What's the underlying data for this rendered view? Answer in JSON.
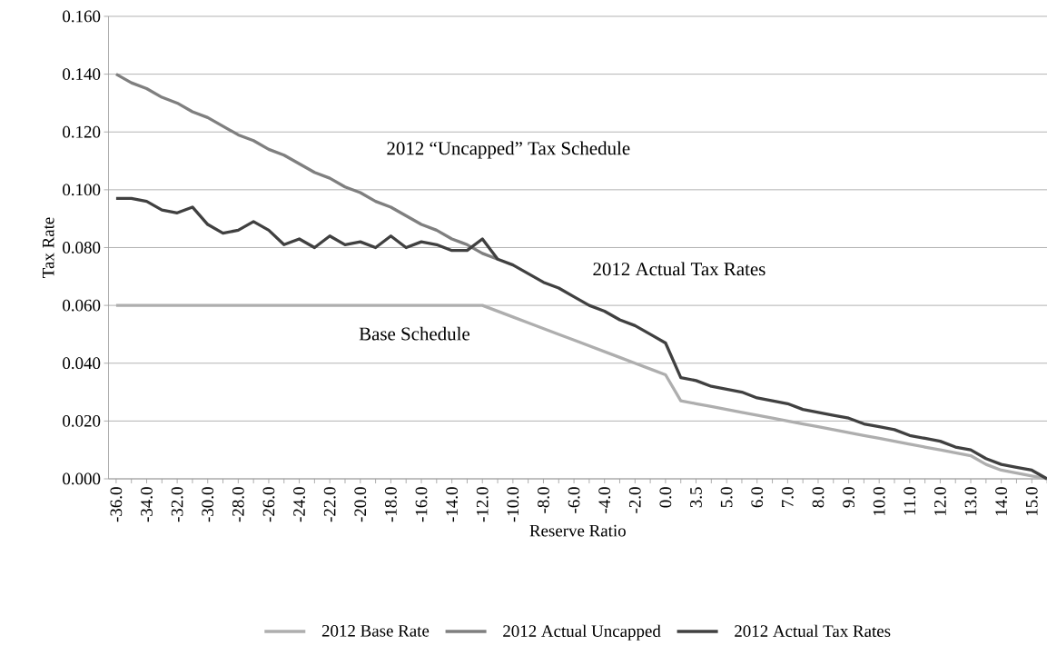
{
  "chart_data": {
    "type": "line",
    "xlabel": "Reserve Ratio",
    "ylabel": "Tax Rate",
    "categories": [
      "-36.0",
      null,
      "-34.0",
      null,
      "-32.0",
      null,
      "-30.0",
      null,
      "-28.0",
      null,
      "-26.0",
      null,
      "-24.0",
      null,
      "-22.0",
      null,
      "-20.0",
      null,
      "-18.0",
      null,
      "-16.0",
      null,
      "-14.0",
      null,
      "-12.0",
      null,
      "-10.0",
      null,
      "-8.0",
      null,
      "-6.0",
      null,
      "-4.0",
      null,
      "-2.0",
      null,
      "0.0",
      null,
      "3.5",
      null,
      "5.0",
      null,
      "6.0",
      null,
      "7.0",
      null,
      "8.0",
      null,
      "9.0",
      null,
      "10.0",
      null,
      "11.0",
      null,
      "12.0",
      null,
      "13.0",
      null,
      "14.0",
      null,
      "15.0",
      null
    ],
    "series": [
      {
        "name": "2012 Base Rate",
        "color": "#aeaeae",
        "values": [
          0.06,
          0.06,
          0.06,
          0.06,
          0.06,
          0.06,
          0.06,
          0.06,
          0.06,
          0.06,
          0.06,
          0.06,
          0.06,
          0.06,
          0.06,
          0.06,
          0.06,
          0.06,
          0.06,
          0.06,
          0.06,
          0.06,
          0.06,
          0.06,
          0.06,
          0.058,
          0.056,
          0.054,
          0.052,
          0.05,
          0.048,
          0.046,
          0.044,
          0.042,
          0.04,
          0.038,
          0.036,
          0.027,
          0.026,
          0.025,
          0.024,
          0.023,
          0.022,
          0.021,
          0.02,
          0.019,
          0.018,
          0.017,
          0.016,
          0.015,
          0.014,
          0.013,
          0.012,
          0.011,
          0.01,
          0.009,
          0.008,
          0.005,
          0.003,
          0.002,
          0.001,
          0.0
        ]
      },
      {
        "name": "2012 Actual Uncapped",
        "color": "#7f7f7f",
        "values": [
          0.14,
          0.137,
          0.135,
          0.132,
          0.13,
          0.127,
          0.125,
          0.122,
          0.119,
          0.117,
          0.114,
          0.112,
          0.109,
          0.106,
          0.104,
          0.101,
          0.099,
          0.096,
          0.094,
          0.091,
          0.088,
          0.086,
          0.083,
          0.081,
          0.078,
          0.076,
          null,
          null,
          null,
          null,
          null,
          null,
          null,
          null,
          null,
          null,
          null,
          null,
          null,
          null,
          null,
          null,
          null,
          null,
          null,
          null,
          null,
          null,
          null,
          null,
          null,
          null,
          null,
          null,
          null,
          null,
          null,
          null,
          null,
          null,
          null,
          null
        ]
      },
      {
        "name": "2012 Actual Tax Rates",
        "color": "#404040",
        "values": [
          0.097,
          0.097,
          0.096,
          0.093,
          0.092,
          0.094,
          0.088,
          0.085,
          0.086,
          0.089,
          0.086,
          0.081,
          0.083,
          0.08,
          0.084,
          0.081,
          0.082,
          0.08,
          0.084,
          0.08,
          0.082,
          0.081,
          0.079,
          0.079,
          0.083,
          0.076,
          0.074,
          0.071,
          0.068,
          0.066,
          0.063,
          0.06,
          0.058,
          0.055,
          0.053,
          0.05,
          0.047,
          0.035,
          0.034,
          0.032,
          0.031,
          0.03,
          0.028,
          0.027,
          0.026,
          0.024,
          0.023,
          0.022,
          0.021,
          0.019,
          0.018,
          0.017,
          0.015,
          0.014,
          0.013,
          0.011,
          0.01,
          0.007,
          0.005,
          0.004,
          0.003,
          0.0
        ]
      }
    ],
    "ylim": [
      0,
      0.16
    ],
    "yticks": [
      {
        "value": 0,
        "label": "0.000"
      },
      {
        "value": 0.02,
        "label": "0.020"
      },
      {
        "value": 0.04,
        "label": "0.040"
      },
      {
        "value": 0.06,
        "label": "0.060"
      },
      {
        "value": 0.08,
        "label": "0.080"
      },
      {
        "value": 0.1,
        "label": "0.100"
      },
      {
        "value": 0.12,
        "label": "0.120"
      },
      {
        "value": 0.14,
        "label": "0.140"
      },
      {
        "value": 0.16,
        "label": "0.160"
      }
    ],
    "grid": "y",
    "legend": "bottom",
    "line_style": "solid",
    "marker": "none",
    "annotations": [
      "2012 “Uncapped” Tax Schedule",
      "2012 Actual Tax Rates",
      "Base Schedule"
    ]
  }
}
